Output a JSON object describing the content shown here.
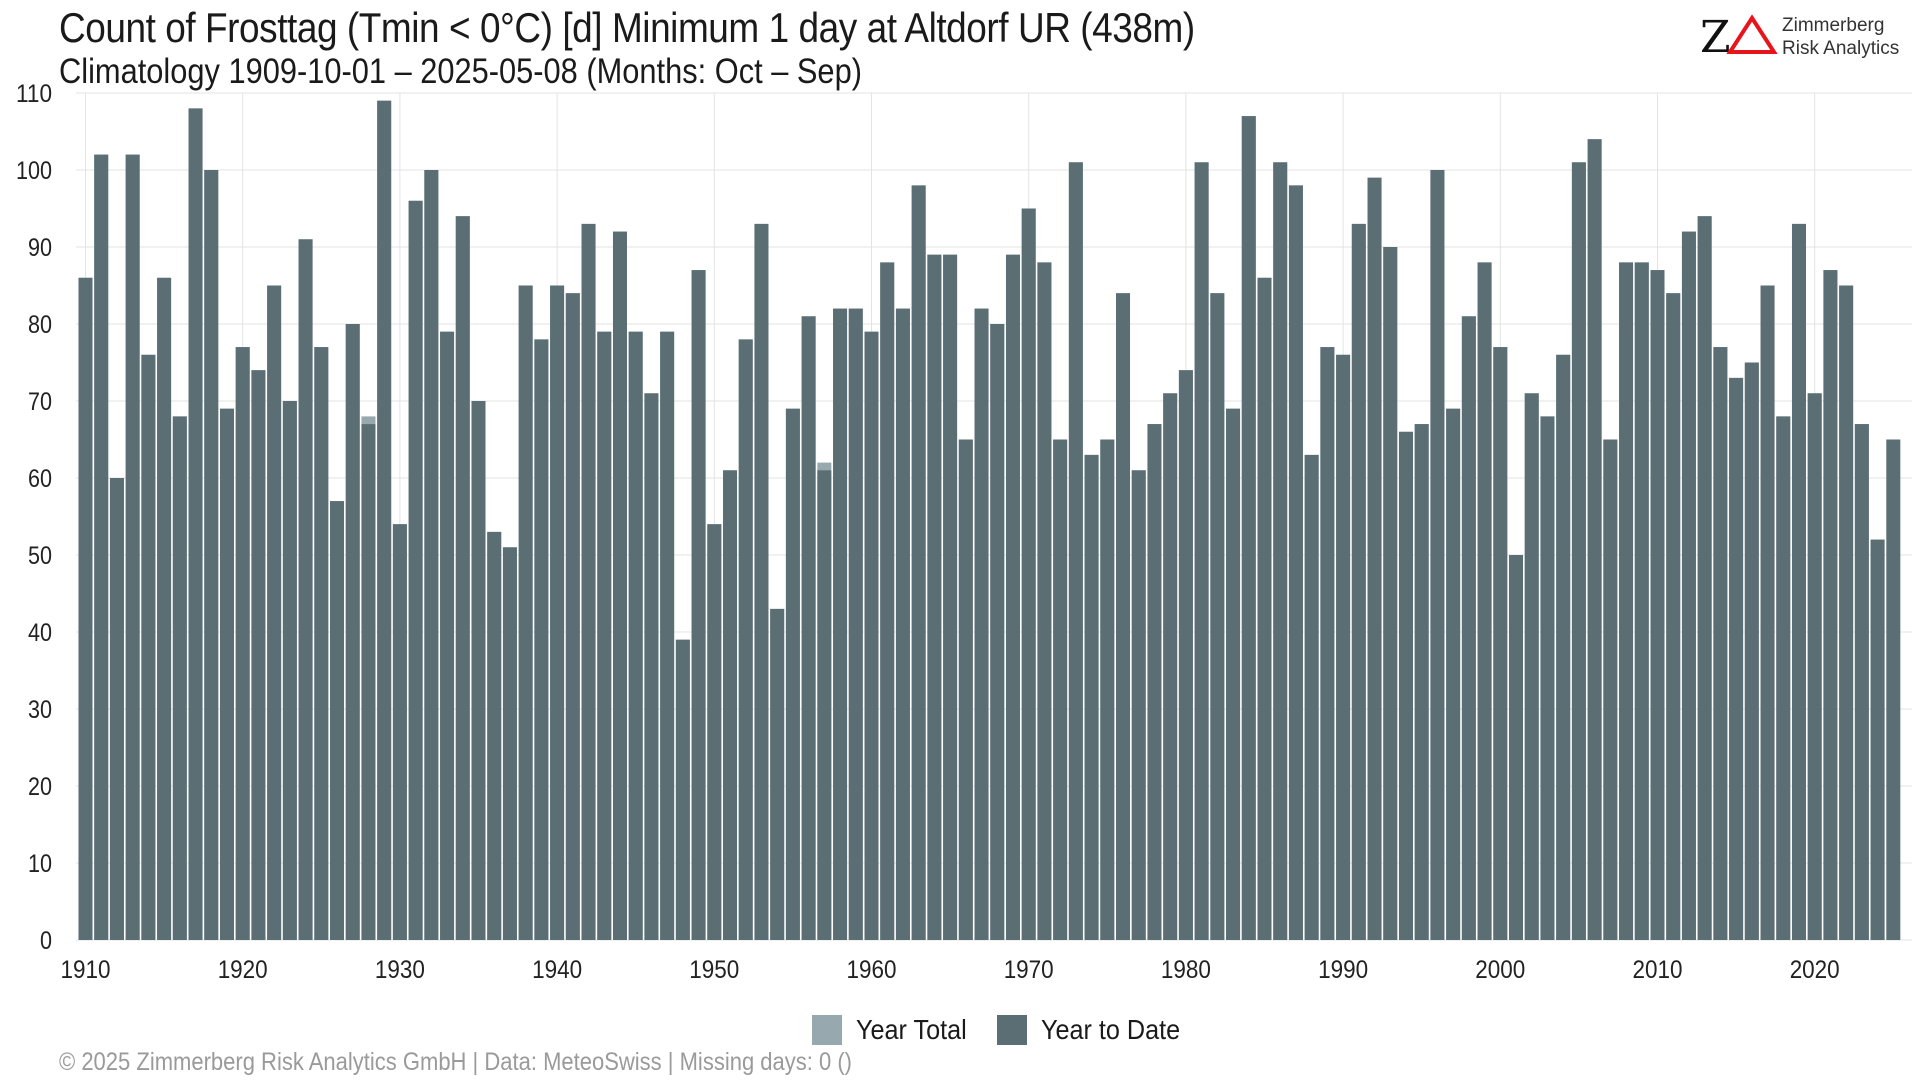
{
  "header": {
    "title": "Count of Frosttag (Tmin < 0°C) [d] Minimum 1 day at Altdorf  UR (438m)",
    "subtitle": "Climatology 1909-10-01 – 2025-05-08 (Months: Oct – Sep)"
  },
  "logo": {
    "mark": "ZΔ",
    "line1": "Zimmerberg",
    "line2": "Risk Analytics",
    "mark_color": "#e8141b"
  },
  "footer": {
    "text": "©  2025 Zimmerberg Risk Analytics GmbH | Data: MeteoSwiss | Missing days: 0 ()"
  },
  "colors": {
    "year_to_date": "#5a6e74",
    "year_total": "#97a8ae",
    "grid": "#e3e3e3"
  },
  "chart_data": {
    "type": "bar",
    "ylim": [
      0,
      110
    ],
    "yticks": [
      0,
      10,
      20,
      30,
      40,
      50,
      60,
      70,
      80,
      90,
      100,
      110
    ],
    "xticks": [
      1910,
      1920,
      1930,
      1940,
      1950,
      1960,
      1970,
      1980,
      1990,
      2000,
      2010,
      2020
    ],
    "grid": true,
    "legend_position": "bottom",
    "x_start": 1910,
    "x_end": 2025,
    "series": [
      {
        "name": "Year Total",
        "values": [
          86,
          102,
          60,
          102,
          76,
          86,
          68,
          108,
          100,
          69,
          77,
          74,
          85,
          70,
          91,
          77,
          57,
          80,
          68,
          109,
          54,
          96,
          100,
          79,
          94,
          70,
          53,
          51,
          85,
          78,
          85,
          84,
          93,
          79,
          92,
          79,
          71,
          79,
          39,
          87,
          54,
          61,
          78,
          93,
          43,
          69,
          81,
          62,
          82,
          82,
          79,
          88,
          82,
          98,
          89,
          89,
          65,
          82,
          80,
          89,
          95,
          88,
          65,
          101,
          63,
          65,
          84,
          61,
          67,
          71,
          74,
          101,
          84,
          69,
          107,
          86,
          101,
          98,
          63,
          77,
          76,
          93,
          99,
          90,
          66,
          67,
          100,
          69,
          81,
          88,
          77,
          50,
          71,
          68,
          76,
          101,
          104,
          65,
          88,
          88,
          87,
          84,
          92,
          94,
          77,
          73,
          75,
          85,
          68,
          93,
          71,
          87,
          85,
          67,
          52,
          null
        ]
      },
      {
        "name": "Year to Date",
        "values": [
          86,
          102,
          60,
          102,
          76,
          86,
          68,
          108,
          100,
          69,
          77,
          74,
          85,
          70,
          91,
          77,
          57,
          80,
          67,
          109,
          54,
          96,
          100,
          79,
          94,
          70,
          53,
          51,
          85,
          78,
          85,
          84,
          93,
          79,
          92,
          79,
          71,
          79,
          39,
          87,
          54,
          61,
          78,
          93,
          43,
          69,
          81,
          61,
          82,
          82,
          79,
          88,
          82,
          98,
          89,
          89,
          65,
          82,
          80,
          89,
          95,
          88,
          65,
          101,
          63,
          65,
          84,
          61,
          67,
          71,
          74,
          101,
          84,
          69,
          107,
          86,
          101,
          98,
          63,
          77,
          76,
          93,
          99,
          90,
          66,
          67,
          100,
          69,
          81,
          88,
          77,
          50,
          71,
          68,
          76,
          101,
          104,
          65,
          88,
          88,
          87,
          84,
          92,
          94,
          77,
          73,
          75,
          85,
          68,
          93,
          71,
          87,
          85,
          67,
          52,
          65
        ]
      }
    ]
  }
}
